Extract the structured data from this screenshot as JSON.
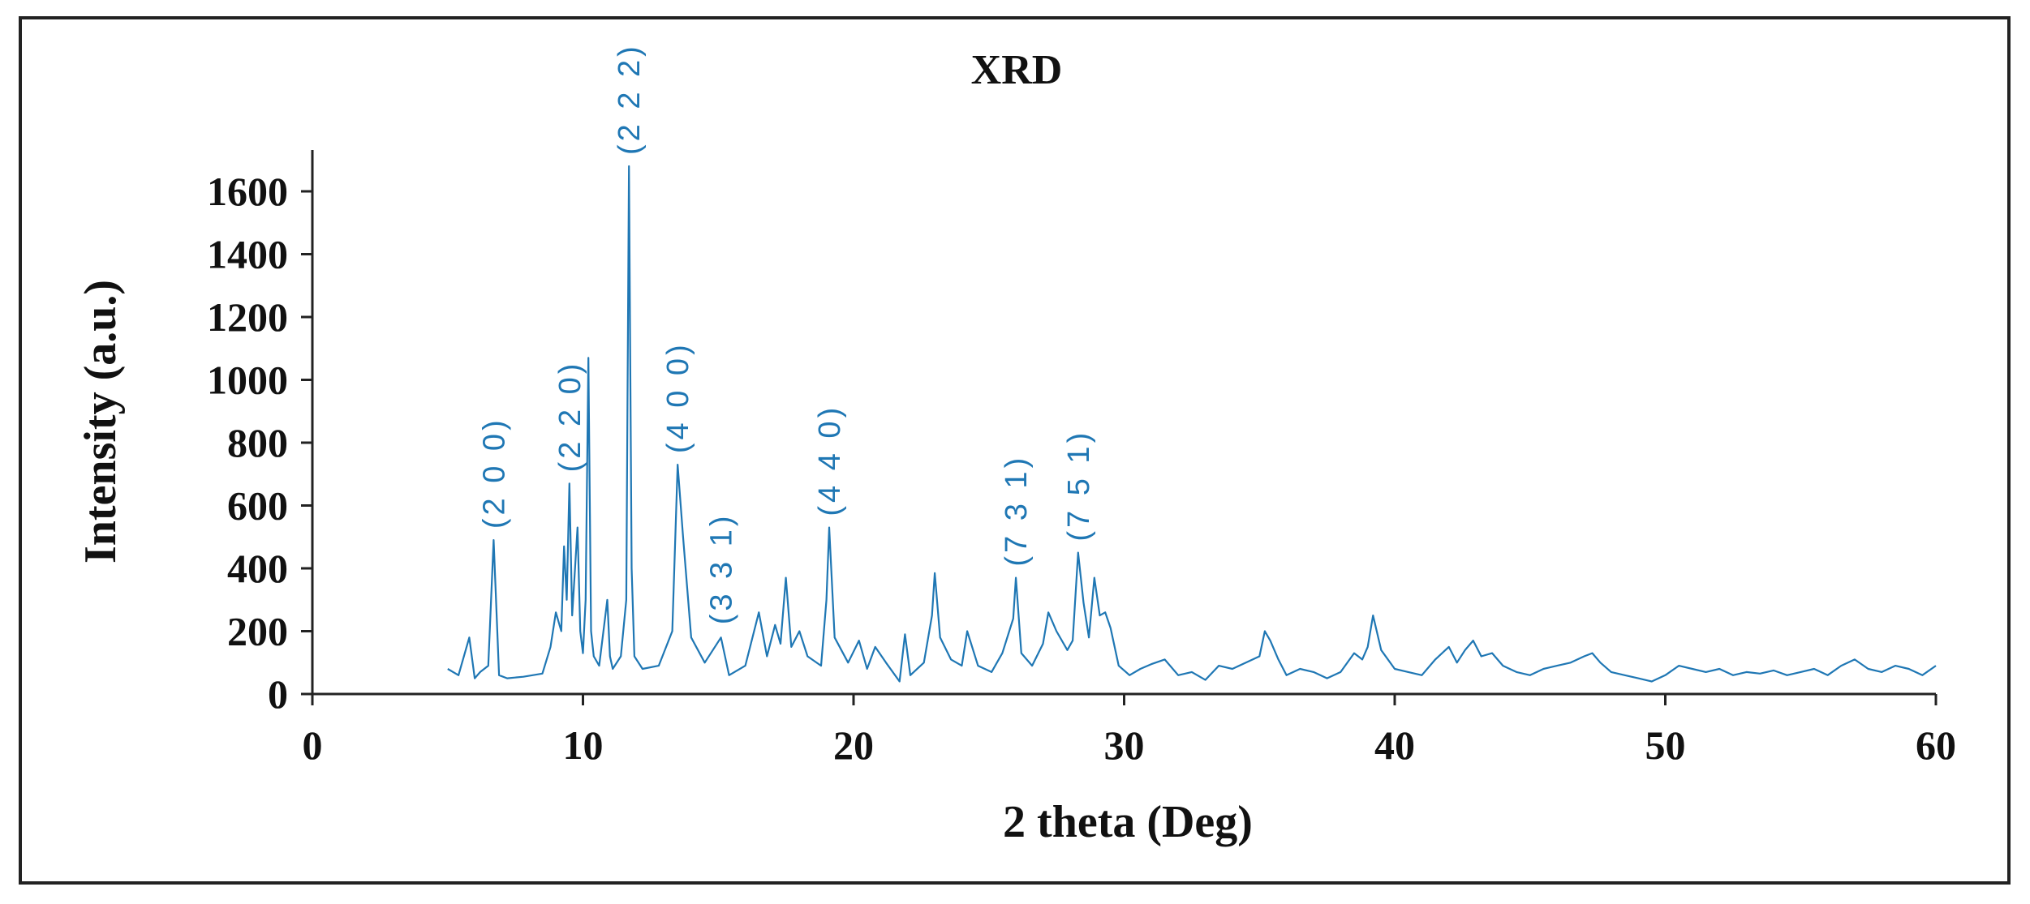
{
  "chart_data": {
    "type": "line",
    "title": "XRD",
    "xlabel": "2 theta (Deg)",
    "ylabel": "Intensity (a.u.)",
    "xlim": [
      0,
      60
    ],
    "ylim": [
      0,
      1750
    ],
    "x_ticks": [
      "0",
      "10",
      "20",
      "30",
      "40",
      "50",
      "60"
    ],
    "y_ticks": [
      "0",
      "200",
      "400",
      "600",
      "800",
      "1000",
      "1200",
      "1400",
      "1600"
    ],
    "grid": false,
    "legend": "none",
    "line_color": "#1f77b4",
    "series": [
      {
        "x": [
          5.0,
          5.4,
          5.8,
          6.0,
          6.2,
          6.5,
          6.7,
          6.9,
          7.2,
          7.8,
          8.5,
          8.8,
          9.0,
          9.2,
          9.3,
          9.4,
          9.5,
          9.6,
          9.8,
          9.9,
          10.0,
          10.1,
          10.2,
          10.3,
          10.4,
          10.6,
          10.9,
          11.0,
          11.1,
          11.4,
          11.6,
          11.7,
          11.8,
          11.9,
          12.2,
          12.8,
          13.3,
          13.5,
          13.7,
          14.0,
          14.5,
          14.8,
          15.1,
          15.4,
          16.0,
          16.5,
          16.8,
          17.1,
          17.3,
          17.5,
          17.7,
          18.0,
          18.3,
          18.8,
          19.0,
          19.1,
          19.3,
          19.8,
          20.2,
          20.5,
          20.8,
          21.2,
          21.7,
          21.9,
          22.1,
          22.6,
          22.9,
          23.0,
          23.2,
          23.6,
          24.0,
          24.2,
          24.6,
          25.1,
          25.5,
          25.9,
          26.0,
          26.2,
          26.6,
          27.0,
          27.2,
          27.5,
          27.9,
          28.1,
          28.3,
          28.5,
          28.7,
          28.9,
          29.1,
          29.3,
          29.5,
          29.8,
          30.2,
          30.6,
          31.0,
          31.5,
          32.0,
          32.5,
          33.0,
          33.5,
          34.0,
          34.5,
          35.0,
          35.2,
          35.4,
          35.7,
          36.0,
          36.5,
          37.0,
          37.5,
          38.0,
          38.5,
          38.8,
          39.0,
          39.2,
          39.5,
          40.0,
          40.5,
          41.0,
          41.5,
          42.0,
          42.3,
          42.6,
          42.9,
          43.2,
          43.6,
          44.0,
          44.5,
          45.0,
          45.5,
          46.0,
          46.5,
          47.0,
          47.3,
          47.6,
          48.0,
          48.5,
          49.0,
          49.5,
          50.0,
          50.5,
          51.0,
          51.5,
          52.0,
          52.5,
          53.0,
          53.5,
          54.0,
          54.5,
          55.0,
          55.5,
          56.0,
          56.5,
          57.0,
          57.5,
          58.0,
          58.5,
          59.0,
          59.5,
          60.0
        ],
        "y": [
          80,
          60,
          180,
          50,
          70,
          90,
          490,
          60,
          50,
          55,
          65,
          150,
          260,
          200,
          470,
          300,
          670,
          250,
          530,
          200,
          130,
          300,
          1070,
          200,
          120,
          90,
          300,
          120,
          80,
          120,
          300,
          1680,
          400,
          120,
          80,
          90,
          200,
          730,
          500,
          180,
          100,
          140,
          180,
          60,
          90,
          260,
          120,
          220,
          160,
          370,
          150,
          200,
          120,
          90,
          300,
          530,
          180,
          100,
          170,
          80,
          150,
          100,
          40,
          190,
          60,
          100,
          250,
          385,
          180,
          110,
          90,
          200,
          90,
          70,
          130,
          240,
          370,
          130,
          90,
          160,
          260,
          200,
          140,
          170,
          450,
          290,
          180,
          370,
          250,
          260,
          210,
          90,
          60,
          80,
          95,
          110,
          60,
          70,
          45,
          90,
          80,
          100,
          120,
          200,
          170,
          110,
          60,
          80,
          70,
          50,
          70,
          130,
          110,
          150,
          250,
          140,
          80,
          70,
          60,
          110,
          150,
          100,
          140,
          170,
          120,
          130,
          90,
          70,
          60,
          80,
          90,
          100,
          120,
          130,
          100,
          70,
          60,
          50,
          40,
          60,
          90,
          80,
          70,
          80,
          60,
          70,
          65,
          75,
          60,
          70,
          80,
          60,
          90,
          110,
          80,
          70,
          90,
          80,
          60,
          90
        ]
      }
    ],
    "annotations": [
      {
        "text": "(2 0 0)",
        "x": 6.7,
        "y": 490
      },
      {
        "text": "(2 2 0)",
        "x": 9.5,
        "y": 670
      },
      {
        "text": "(2 2 2)",
        "x": 11.7,
        "y": 1680
      },
      {
        "text": "(4 0 0)",
        "x": 13.5,
        "y": 730
      },
      {
        "text": "(3 3 1)",
        "x": 15.1,
        "y": 185
      },
      {
        "text": "(4 4 0)",
        "x": 19.1,
        "y": 530
      },
      {
        "text": "(7 3 1)",
        "x": 26.0,
        "y": 370
      },
      {
        "text": "(7 5 1)",
        "x": 28.3,
        "y": 450
      }
    ]
  }
}
